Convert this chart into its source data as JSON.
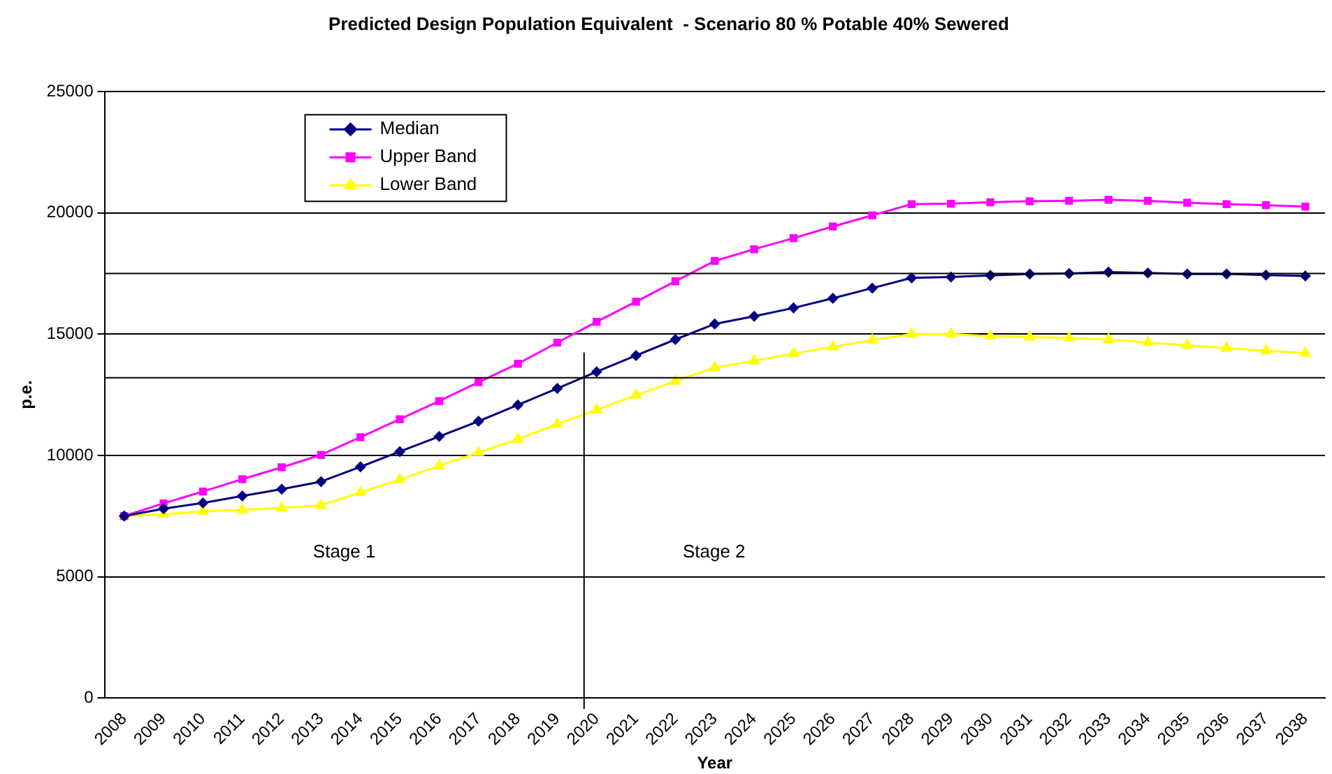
{
  "chart_data": {
    "type": "line",
    "title": "Predicted Design Population Equivalent  - Scenario 80 % Potable 40% Sewered",
    "xlabel": "Year",
    "ylabel": "p.e.",
    "categories": [
      "2008",
      "2009",
      "2010",
      "2011",
      "2012",
      "2013",
      "2014",
      "2015",
      "2016",
      "2017",
      "2018",
      "2019",
      "2020",
      "2021",
      "2022",
      "2023",
      "2024",
      "2025",
      "2026",
      "2027",
      "2028",
      "2029",
      "2030",
      "2031",
      "2032",
      "2033",
      "2034",
      "2035",
      "2036",
      "2037",
      "2038"
    ],
    "series": [
      {
        "name": "Median",
        "color": "#000080",
        "marker": "diamond",
        "values": [
          7500,
          7800,
          8040,
          8330,
          8610,
          8920,
          9530,
          10160,
          10780,
          11410,
          12080,
          12760,
          13450,
          14120,
          14780,
          15420,
          15740,
          16080,
          16480,
          16900,
          17320,
          17360,
          17420,
          17480,
          17500,
          17560,
          17520,
          17480,
          17480,
          17440,
          17400
        ]
      },
      {
        "name": "Upper Band",
        "color": "#ff00ff",
        "marker": "square",
        "values": [
          7500,
          8020,
          8510,
          9020,
          9510,
          10020,
          10750,
          11490,
          12240,
          13020,
          13780,
          14650,
          15510,
          16340,
          17180,
          18020,
          18500,
          18960,
          19440,
          19900,
          20360,
          20380,
          20440,
          20480,
          20500,
          20540,
          20500,
          20420,
          20360,
          20320,
          20260
        ]
      },
      {
        "name": "Lower Band",
        "color": "#ffff00",
        "marker": "triangle",
        "values": [
          7500,
          7570,
          7690,
          7760,
          7840,
          7940,
          8470,
          9000,
          9570,
          10120,
          10670,
          11290,
          11880,
          12480,
          13060,
          13620,
          13900,
          14200,
          14480,
          14760,
          15000,
          15000,
          14920,
          14880,
          14840,
          14780,
          14660,
          14540,
          14420,
          14320,
          14220
        ]
      }
    ],
    "ylim": [
      0,
      25000
    ],
    "yticks": [
      0,
      5000,
      10000,
      15000,
      20000,
      25000
    ],
    "grid": "y",
    "legend": "top left",
    "line_style": "solid",
    "ref_lines": [
      {
        "axis": "x",
        "value": "2020",
        "color": "#000000"
      },
      {
        "axis": "y",
        "value": 17500,
        "color": "#000000"
      },
      {
        "axis": "y",
        "value": 13200,
        "color": "#000000"
      }
    ],
    "annotations": [
      "Stage 1",
      "Stage 2"
    ]
  }
}
